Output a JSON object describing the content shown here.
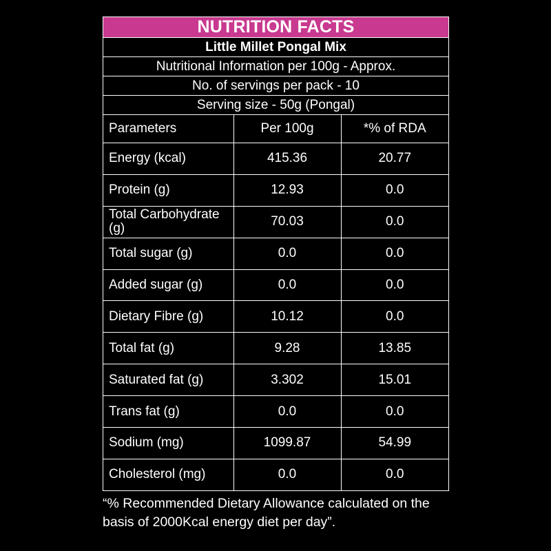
{
  "header": {
    "title": "NUTRITION FACTS",
    "product": "Little Millet Pongal Mix",
    "info_lines": [
      "Nutritional Information per 100g - Approx.",
      "No. of servings per pack - 10",
      "Serving size  - 50g (Pongal)"
    ],
    "title_bg": "#c8398f"
  },
  "table": {
    "columns": [
      "Parameters",
      "Per 100g",
      "*% of RDA"
    ],
    "rows": [
      {
        "param": "Energy (kcal)",
        "per100g": "415.36",
        "rda": "20.77"
      },
      {
        "param": "Protein (g)",
        "per100g": "12.93",
        "rda": "0.0"
      },
      {
        "param": "Total Carbohydrate (g)",
        "per100g": "70.03",
        "rda": "0.0"
      },
      {
        "param": "Total sugar (g)",
        "per100g": "0.0",
        "rda": "0.0"
      },
      {
        "param": "Added sugar (g)",
        "per100g": "0.0",
        "rda": "0.0"
      },
      {
        "param": "Dietary Fibre (g)",
        "per100g": "10.12",
        "rda": "0.0"
      },
      {
        "param": "Total fat (g)",
        "per100g": "9.28",
        "rda": "13.85"
      },
      {
        "param": "Saturated fat (g)",
        "per100g": "3.302",
        "rda": "15.01"
      },
      {
        "param": "Trans fat (g)",
        "per100g": "0.0",
        "rda": "0.0"
      },
      {
        "param": "Sodium (mg)",
        "per100g": "1099.87",
        "rda": "54.99"
      },
      {
        "param": "Cholesterol (mg)",
        "per100g": "0.0",
        "rda": "0.0"
      }
    ]
  },
  "footnote": "“% Recommended Dietary Allowance calculated on the basis of 2000Kcal energy diet per day”."
}
